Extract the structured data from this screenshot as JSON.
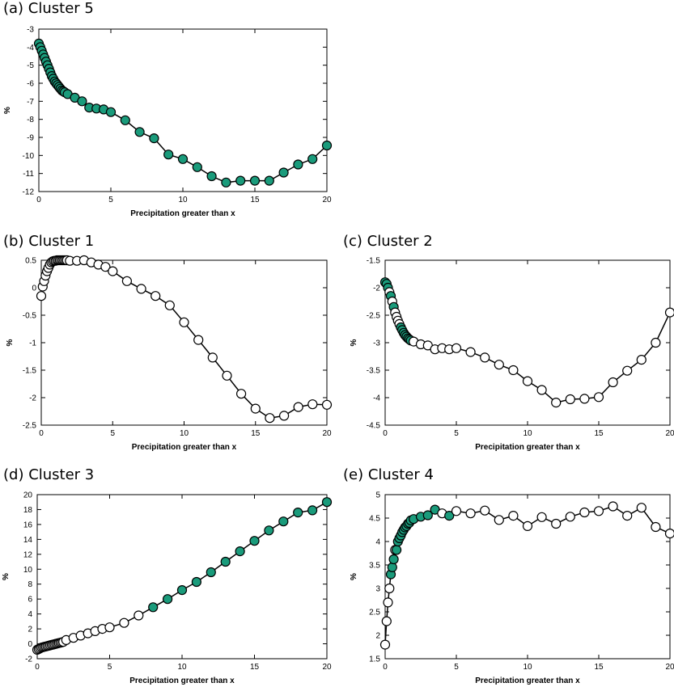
{
  "figure": {
    "colors": {
      "filled_marker": "#1a9b7b",
      "line": "#000000",
      "open_marker_fill": "#ffffff"
    }
  },
  "chart_data": [
    {
      "id": "a",
      "type": "line",
      "title": "(a) Cluster 5",
      "xlabel": "Precipitation greater than x",
      "ylabel": "%",
      "xlim": [
        0,
        20
      ],
      "ylim": [
        -12,
        -3
      ],
      "xticks": [
        "0",
        "5",
        "10",
        "15",
        "20"
      ],
      "yticks": [
        "-3",
        "-4",
        "-5",
        "-6",
        "-7",
        "-8",
        "-9",
        "-10",
        "-11",
        "-12"
      ],
      "marker_style": "filled",
      "x": [
        0,
        0.1,
        0.2,
        0.3,
        0.4,
        0.5,
        0.6,
        0.7,
        0.8,
        0.9,
        1.0,
        1.1,
        1.2,
        1.3,
        1.4,
        1.5,
        1.6,
        1.7,
        1.8,
        2,
        2.5,
        3,
        3.5,
        4,
        4.5,
        5,
        6,
        7,
        8,
        9,
        10,
        11,
        12,
        13,
        14,
        15,
        16,
        17,
        18,
        19,
        20
      ],
      "y": [
        -3.8,
        -4.0,
        -4.2,
        -4.4,
        -4.6,
        -4.8,
        -5.0,
        -5.2,
        -5.4,
        -5.6,
        -5.75,
        -5.9,
        -6.0,
        -6.1,
        -6.2,
        -6.3,
        -6.4,
        -6.45,
        -6.5,
        -6.6,
        -6.8,
        -7.0,
        -7.35,
        -7.4,
        -7.45,
        -7.6,
        -8.05,
        -8.7,
        -9.05,
        -9.95,
        -10.2,
        -10.65,
        -11.15,
        -11.5,
        -11.4,
        -11.4,
        -11.4,
        -10.95,
        -10.5,
        -10.2,
        -9.45
      ]
    },
    {
      "id": "b",
      "type": "line",
      "title": "(b) Cluster 1",
      "xlabel": "Precipitation greater than x",
      "ylabel": "%",
      "xlim": [
        0,
        20
      ],
      "ylim": [
        -2.5,
        0.5
      ],
      "xticks": [
        "0",
        "5",
        "10",
        "15",
        "20"
      ],
      "yticks": [
        "0.5",
        "0",
        "-0.5",
        "-1",
        "-1.5",
        "-2",
        "-2.5"
      ],
      "marker_style": "open",
      "x": [
        0,
        0.1,
        0.2,
        0.3,
        0.4,
        0.5,
        0.6,
        0.7,
        0.8,
        0.9,
        1.0,
        1.1,
        1.2,
        1.3,
        1.4,
        1.5,
        1.6,
        1.7,
        1.8,
        2,
        2.5,
        3,
        3.5,
        4,
        4.5,
        5,
        6,
        7,
        8,
        9,
        10,
        11,
        12,
        13,
        14,
        15,
        16,
        17,
        18,
        19,
        20
      ],
      "y": [
        -0.15,
        0.02,
        0.12,
        0.22,
        0.3,
        0.36,
        0.42,
        0.46,
        0.48,
        0.49,
        0.49,
        0.5,
        0.5,
        0.5,
        0.5,
        0.5,
        0.5,
        0.5,
        0.5,
        0.49,
        0.49,
        0.5,
        0.46,
        0.42,
        0.38,
        0.3,
        0.12,
        -0.02,
        -0.15,
        -0.32,
        -0.63,
        -0.95,
        -1.27,
        -1.6,
        -1.93,
        -2.2,
        -2.37,
        -2.33,
        -2.17,
        -2.12,
        -2.13
      ]
    },
    {
      "id": "c",
      "type": "line",
      "title": "(c) Cluster 2",
      "xlabel": "Precipitation greater than x",
      "ylabel": "%",
      "xlim": [
        0,
        20
      ],
      "ylim": [
        -4.5,
        -1.5
      ],
      "xticks": [
        "0",
        "5",
        "10",
        "15",
        "20"
      ],
      "yticks": [
        "-1.5",
        "-2",
        "-2.5",
        "-3",
        "-3.5",
        "-4",
        "-4.5"
      ],
      "marker_style": "mixed",
      "x": [
        0,
        0.1,
        0.2,
        0.3,
        0.4,
        0.5,
        0.6,
        0.7,
        0.8,
        0.9,
        1.0,
        1.1,
        1.2,
        1.3,
        1.4,
        1.5,
        1.6,
        1.7,
        1.8,
        2,
        2.5,
        3,
        3.5,
        4,
        4.5,
        5,
        6,
        7,
        8,
        9,
        10,
        11,
        12,
        13,
        14,
        15,
        16,
        17,
        18,
        19,
        20
      ],
      "y": [
        -1.9,
        -1.93,
        -2.0,
        -2.08,
        -2.15,
        -2.25,
        -2.35,
        -2.45,
        -2.53,
        -2.6,
        -2.66,
        -2.72,
        -2.77,
        -2.82,
        -2.86,
        -2.89,
        -2.92,
        -2.94,
        -2.96,
        -2.98,
        -3.03,
        -3.05,
        -3.12,
        -3.1,
        -3.12,
        -3.1,
        -3.17,
        -3.27,
        -3.4,
        -3.5,
        -3.7,
        -3.86,
        -4.09,
        -4.03,
        -4.02,
        -3.99,
        -3.72,
        -3.51,
        -3.31,
        -3.0,
        -2.45
      ],
      "filled": [
        true,
        true,
        true,
        false,
        true,
        false,
        true,
        false,
        false,
        false,
        false,
        true,
        true,
        true,
        true,
        true,
        true,
        true,
        true,
        false,
        false,
        false,
        false,
        false,
        false,
        false,
        false,
        false,
        false,
        false,
        false,
        false,
        false,
        false,
        false,
        false,
        false,
        false,
        false,
        false,
        false
      ]
    },
    {
      "id": "d",
      "type": "line",
      "title": "(d) Cluster 3",
      "xlabel": "Precipitation greater than x",
      "ylabel": "%",
      "xlim": [
        0,
        20
      ],
      "ylim": [
        -2,
        20
      ],
      "xticks": [
        "0",
        "5",
        "10",
        "15",
        "20"
      ],
      "yticks": [
        "20",
        "18",
        "16",
        "14",
        "12",
        "10",
        "8",
        "6",
        "4",
        "2",
        "0",
        "-2"
      ],
      "marker_style": "mixed",
      "x": [
        0,
        0.1,
        0.2,
        0.3,
        0.4,
        0.5,
        0.6,
        0.7,
        0.8,
        0.9,
        1.0,
        1.1,
        1.2,
        1.3,
        1.4,
        1.5,
        1.6,
        1.7,
        1.8,
        2,
        2.5,
        3,
        3.5,
        4,
        4.5,
        5,
        6,
        7,
        8,
        9,
        10,
        11,
        12,
        13,
        14,
        15,
        16,
        17,
        18,
        19,
        20
      ],
      "y": [
        -0.8,
        -0.7,
        -0.6,
        -0.5,
        -0.45,
        -0.4,
        -0.35,
        -0.3,
        -0.25,
        -0.2,
        -0.15,
        -0.1,
        -0.05,
        0.0,
        0.05,
        0.1,
        0.15,
        0.2,
        0.25,
        0.5,
        0.8,
        1.1,
        1.4,
        1.7,
        2.0,
        2.2,
        2.8,
        3.8,
        4.9,
        6.0,
        7.2,
        8.3,
        9.6,
        11.0,
        12.4,
        13.8,
        15.2,
        16.4,
        17.6,
        17.9,
        19.0
      ],
      "filled": [
        false,
        false,
        false,
        false,
        false,
        false,
        false,
        false,
        false,
        false,
        false,
        false,
        false,
        false,
        false,
        false,
        false,
        false,
        false,
        false,
        false,
        false,
        false,
        false,
        false,
        false,
        false,
        false,
        true,
        true,
        true,
        true,
        true,
        true,
        true,
        true,
        true,
        true,
        true,
        true,
        true
      ]
    },
    {
      "id": "e",
      "type": "line",
      "title": "(e) Cluster 4",
      "xlabel": "Precipitation greater than x",
      "ylabel": "%",
      "xlim": [
        0,
        20
      ],
      "ylim": [
        1.5,
        5
      ],
      "xticks": [
        "0",
        "5",
        "10",
        "15",
        "20"
      ],
      "yticks": [
        "5",
        "4.5",
        "4",
        "3.5",
        "3",
        "2.5",
        "2",
        "1.5"
      ],
      "marker_style": "mixed",
      "x": [
        0,
        0.1,
        0.2,
        0.3,
        0.4,
        0.5,
        0.6,
        0.7,
        0.8,
        0.9,
        1.0,
        1.1,
        1.2,
        1.3,
        1.4,
        1.5,
        1.6,
        1.7,
        1.8,
        2,
        2.5,
        3,
        3.5,
        4,
        4.5,
        5,
        6,
        7,
        8,
        9,
        10,
        11,
        12,
        13,
        14,
        15,
        16,
        17,
        18,
        19,
        20
      ],
      "y": [
        1.8,
        2.3,
        2.7,
        3.0,
        3.3,
        3.45,
        3.62,
        3.82,
        3.82,
        4.0,
        4.07,
        4.13,
        4.2,
        4.25,
        4.3,
        4.33,
        4.38,
        4.4,
        4.45,
        4.48,
        4.53,
        4.56,
        4.68,
        4.6,
        4.55,
        4.65,
        4.6,
        4.66,
        4.46,
        4.55,
        4.33,
        4.52,
        4.38,
        4.53,
        4.62,
        4.65,
        4.75,
        4.55,
        4.72,
        4.31,
        4.17
      ],
      "filled": [
        false,
        false,
        false,
        false,
        true,
        true,
        true,
        false,
        true,
        true,
        true,
        true,
        true,
        true,
        true,
        true,
        true,
        true,
        true,
        true,
        true,
        true,
        true,
        false,
        true,
        false,
        false,
        false,
        false,
        false,
        false,
        false,
        false,
        false,
        false,
        false,
        false,
        false,
        false,
        false,
        false
      ]
    }
  ]
}
